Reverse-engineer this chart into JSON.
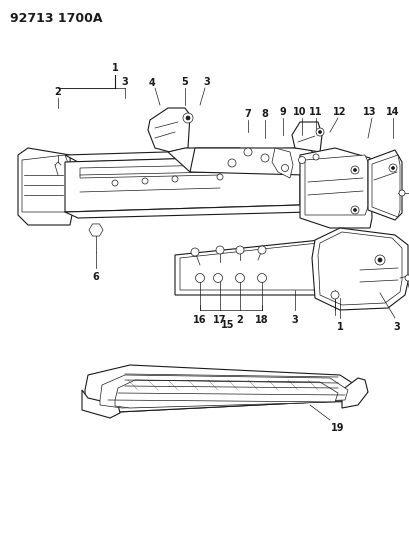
{
  "title": "92713 1700A",
  "bg_color": "#ffffff",
  "line_color": "#1a1a1a",
  "title_fontsize": 9,
  "label_fontsize": 7,
  "fig_width": 4.09,
  "fig_height": 5.33,
  "dpi": 100
}
